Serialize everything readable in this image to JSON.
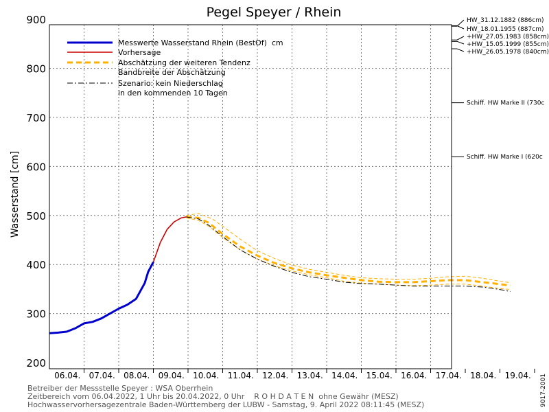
{
  "chart_data": {
    "type": "line",
    "title": "Pegel Speyer / Rhein",
    "ylabel": "Wasserstand [cm]",
    "xlabel": "",
    "ylim": [
      200,
      900
    ],
    "grid": true,
    "legend_placement": "top-left",
    "y_ticks": [
      200,
      300,
      400,
      500,
      600,
      700,
      800,
      900
    ],
    "x_tick_labels": [
      "06.04.",
      "07.04.",
      "08.04.",
      "09.04.",
      "10.04.",
      "11.04.",
      "12.04.",
      "13.04.",
      "14.04.",
      "15.04.",
      "16.04.",
      "17.04.",
      "18.04.",
      "19.04."
    ],
    "legend": {
      "measured": "Messwerte Wasserstand Rhein (BestOf)  cm",
      "forecast": "Vorhersage",
      "trend": "Abschätzung der weiteren Tendenz",
      "band": "Bandbreite der Abschätzung",
      "scenario_line1": "Szenario: kein Niederschlag",
      "scenario_line2": "in den kommenden 10 Tagen"
    },
    "series": [
      {
        "name": "Messwerte Wasserstand Rhein (BestOf)  cm",
        "color": "#0000cc",
        "x": [
          0,
          0.25,
          0.5,
          0.75,
          1.0,
          1.25,
          1.5,
          1.75,
          2.0,
          2.25,
          2.5,
          2.75,
          2.85,
          3.0
        ],
        "y": [
          260,
          261,
          263,
          270,
          280,
          283,
          290,
          300,
          310,
          318,
          330,
          362,
          385,
          405
        ]
      },
      {
        "name": "Vorhersage",
        "color": "#cc0000",
        "x": [
          3.0,
          3.2,
          3.4,
          3.6,
          3.8,
          3.95
        ],
        "y": [
          405,
          445,
          472,
          487,
          495,
          497
        ]
      },
      {
        "name": "Abschätzung der weiteren Tendenz",
        "color": "#ffb000",
        "x": [
          3.95,
          4.3,
          4.6,
          5.0,
          5.5,
          6.0,
          6.5,
          7.0,
          7.5,
          8.0,
          8.5,
          9.0,
          9.5,
          10.0,
          10.5,
          11.0,
          11.5,
          12.0,
          12.5,
          13.0,
          13.3
        ],
        "y": [
          497,
          495,
          485,
          462,
          437,
          418,
          403,
          392,
          384,
          378,
          373,
          368,
          365,
          364,
          364,
          366,
          368,
          368,
          364,
          360,
          357
        ]
      },
      {
        "name": "Bandbreite der Abschätzung (oben)",
        "color": "#ffb000",
        "x": [
          3.95,
          4.3,
          4.7,
          5.0,
          5.5,
          6.0,
          6.5,
          7.0,
          7.5,
          8.0,
          8.5,
          9.0,
          9.5,
          10.0,
          10.5,
          11.0,
          11.5,
          12.0,
          12.5,
          13.0,
          13.3
        ],
        "y": [
          500,
          504,
          493,
          478,
          452,
          428,
          412,
          399,
          390,
          384,
          378,
          373,
          371,
          370,
          370,
          372,
          375,
          376,
          372,
          366,
          363
        ]
      },
      {
        "name": "Bandbreite der Abschätzung (unten)",
        "color": "#ffb000",
        "x": [
          3.95,
          4.3,
          4.6,
          5.0,
          5.5,
          6.0,
          6.5,
          7.0,
          7.5,
          8.0,
          8.5,
          9.0,
          9.5,
          10.0,
          10.5,
          11.0,
          11.5,
          12.0,
          12.5,
          13.0,
          13.3
        ],
        "y": [
          495,
          490,
          478,
          455,
          430,
          411,
          397,
          387,
          379,
          373,
          366,
          362,
          360,
          358,
          357,
          358,
          360,
          360,
          356,
          351,
          349
        ]
      },
      {
        "name": "Szenario: kein Niederschlag in den kommenden 10 Tagen",
        "color": "#000000",
        "x": [
          3.95,
          4.3,
          4.6,
          5.0,
          5.5,
          6.0,
          6.5,
          7.0,
          7.5,
          8.0,
          8.5,
          9.0,
          9.5,
          10.0,
          10.5,
          11.0,
          11.5,
          12.0,
          12.5,
          13.0,
          13.3
        ],
        "y": [
          497,
          493,
          480,
          457,
          430,
          411,
          396,
          384,
          375,
          370,
          364,
          361,
          360,
          358,
          356,
          356,
          356,
          356,
          354,
          349,
          345
        ]
      }
    ],
    "reference_marks": [
      {
        "label": "HW_31.12.1882 (886cm)",
        "value": 886
      },
      {
        "label": "HW_18.01.1955 (887cm)",
        "value": 887
      },
      {
        "label": "+HW_27.05.1983 (858cm)",
        "value": 858
      },
      {
        "label": "+HW_15.05.1999 (855cm)",
        "value": 855
      },
      {
        "label": "+HW_26.05.1978 (840cm)",
        "value": 840
      },
      {
        "label": "Schiff. HW Marke II (730c",
        "value": 730
      },
      {
        "label": "Schiff. HW Marke I (620c",
        "value": 620
      }
    ]
  },
  "footer": {
    "line1": "Betreiber der Messstelle Speyer : WSA Oberrhein",
    "line2": "Zeitbereich vom 06.04.2022, 1 Uhr bis 20.04.2022, 0 Uhr    R O H D A T E N  ohne Gewähr (MESZ)",
    "line3": "Hochwasservorhersagezentrale Baden-Württemberg der LUBW - Samstag, 9. April 2022 08:11:45 (MESZ)",
    "side_code": "9017-2001"
  }
}
